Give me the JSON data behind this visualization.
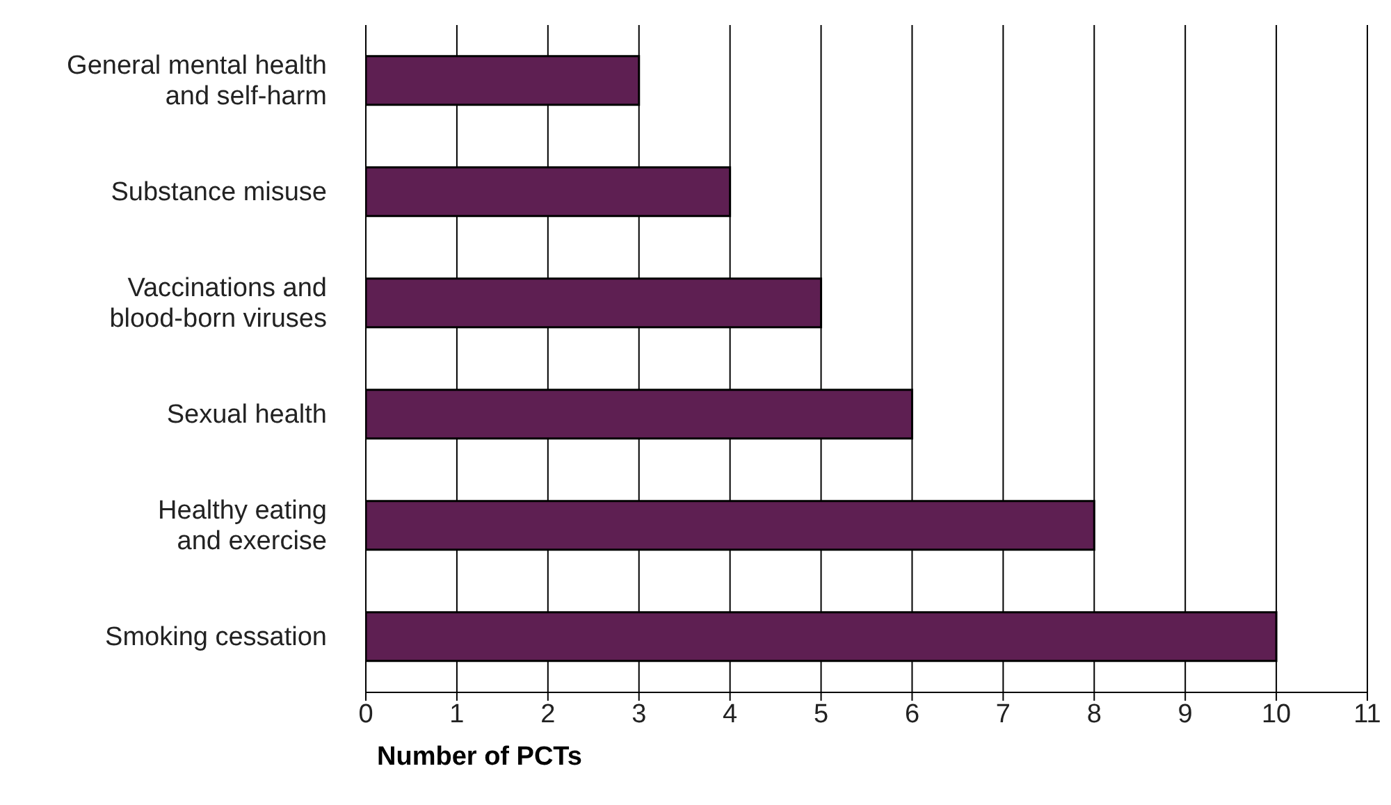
{
  "chart_data": {
    "type": "bar",
    "orientation": "horizontal",
    "xlabel": "Number of PCTs",
    "categories": [
      "General mental health\nand self-harm",
      "Substance misuse",
      "Vaccinations and\nblood-born viruses",
      "Sexual health",
      "Healthy eating\nand exercise",
      "Smoking cessation"
    ],
    "values": [
      3,
      4,
      5,
      6,
      8,
      10
    ],
    "color": "#5e1f52",
    "xlim": [
      0,
      11
    ],
    "xticks": [
      0,
      1,
      2,
      3,
      4,
      5,
      6,
      7,
      8,
      9,
      10,
      11
    ],
    "grid": "x",
    "legend": false
  }
}
